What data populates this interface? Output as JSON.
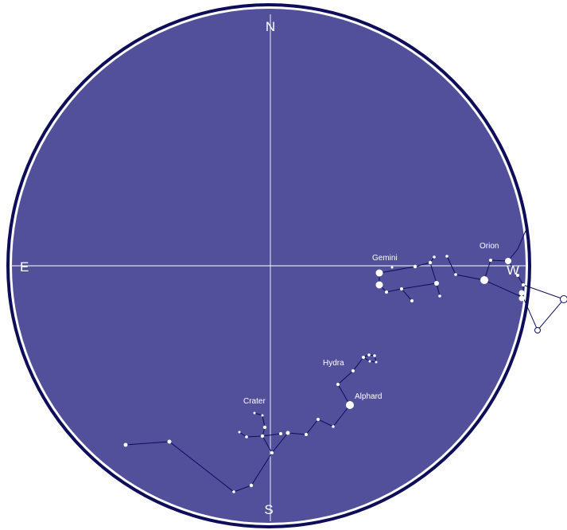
{
  "sky": {
    "colors": {
      "sky": "#52509b",
      "rim_outer": "#0d0d5a",
      "rim_inner": "#ffffff",
      "lines": "#ffffff",
      "constellation_lines": "#0d0d5a",
      "stars": "#ffffff"
    },
    "cardinals": {
      "north": "N",
      "south": "S",
      "east": "E",
      "west": "W"
    },
    "constellations": {
      "gemini": "Gemini",
      "orion": "Orion",
      "hydra": "Hydra",
      "crater": "Crater"
    },
    "stars": {
      "alphard": "Alphard"
    }
  }
}
